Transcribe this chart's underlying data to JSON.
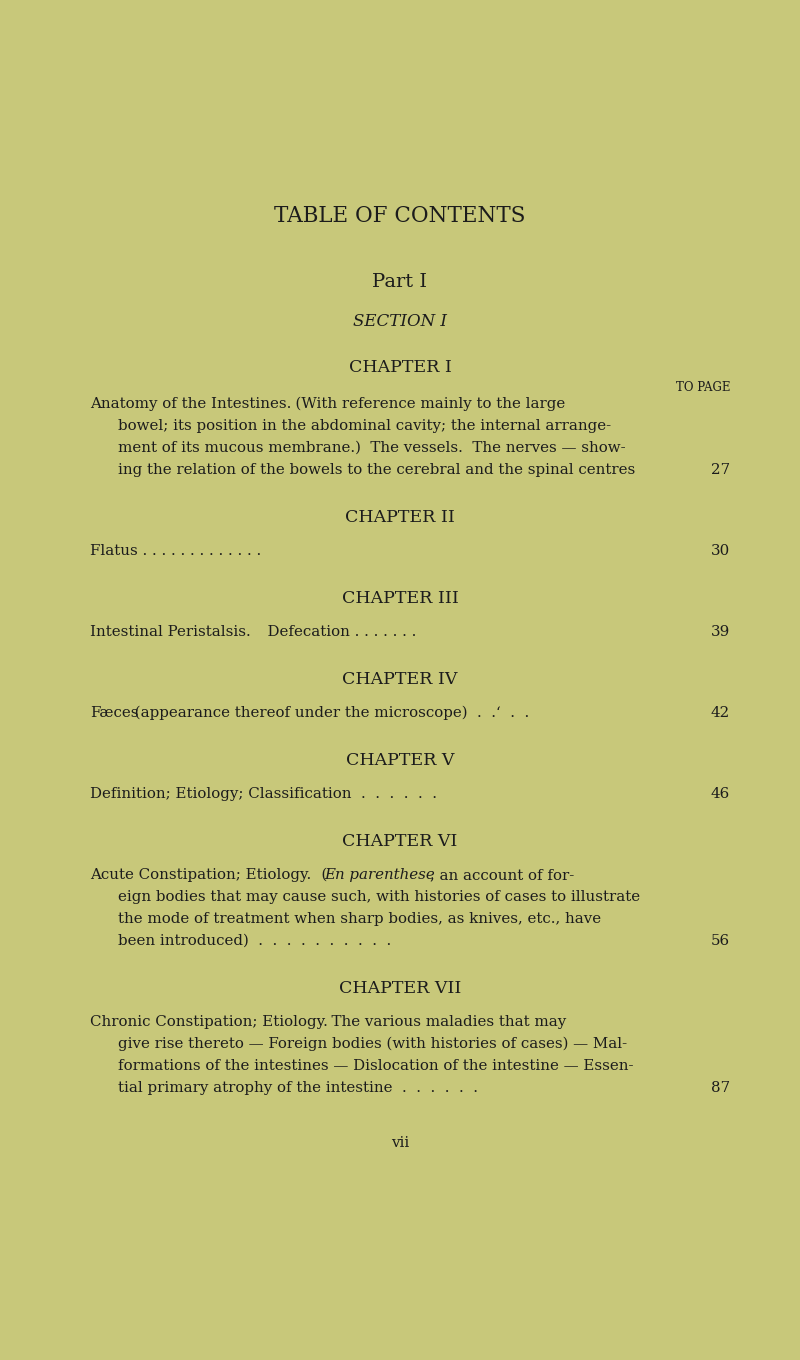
{
  "bg_color": "#c8c87a",
  "text_color": "#1c1c1c",
  "title": "TABLE OF CONTENTS",
  "part": "Part I",
  "section": "SECTION I",
  "to_page_label": "TO PAGE",
  "chapters": [
    {
      "heading": "CHAPTER I",
      "sc_part": "Anatomy of the Intestines.",
      "normal_part": "  (With reference mainly to the large",
      "extra_lines": [
        "bowel; its position in the abdominal cavity; the internal arrange-",
        "ment of its mucous membrane.)  The vessels.  The nerves — show-",
        "ing the relation of the bowels to the cerebral and the spinal centres"
      ],
      "page": "27"
    },
    {
      "heading": "CHAPTER II",
      "sc_part": "Flatus",
      "dots": " . . . . . . . . . . . . .",
      "extra_lines": [],
      "page": "30"
    },
    {
      "heading": "CHAPTER III",
      "sc_part": "Intestinal Peristalsis.",
      "normal_part": "  Defecation . . . . . . .",
      "extra_lines": [],
      "page": "39"
    },
    {
      "heading": "CHAPTER IV",
      "sc_part": "Fæces",
      "normal_part": " (appearance thereof under the microscope)  .  .‘  .  .",
      "extra_lines": [],
      "page": "42"
    },
    {
      "heading": "CHAPTER V",
      "sc_part": "Definition; Etiology; Classification",
      "dots": "  .  .  .  .  .  .",
      "extra_lines": [],
      "page": "46"
    },
    {
      "heading": "CHAPTER VI",
      "sc_part": "Acute Constipation; Etiology.",
      "italic_part": "  (En parenthese,",
      "normal_part": " an account of for-",
      "extra_lines": [
        "eign bodies that may cause such, with histories of cases to illustrate",
        "the mode of treatment when sharp bodies, as knives, etc., have",
        "been introduced)  .  .  .  .  .  .  .  .  .  ."
      ],
      "page": "56"
    },
    {
      "heading": "CHAPTER VII",
      "sc_part": "Chronic Constipation; Etiology.",
      "normal_part": "  The various maladies that may",
      "extra_lines": [
        "give rise thereto — Foreign bodies (with histories of cases) — Mal-",
        "formations of the intestines — Dislocation of the intestine — Essen-",
        "tial primary atrophy of the intestine  .  .  .  .  .  ."
      ],
      "page": "87"
    }
  ],
  "footer": "vii",
  "figsize": [
    8.0,
    13.6
  ],
  "dpi": 100
}
